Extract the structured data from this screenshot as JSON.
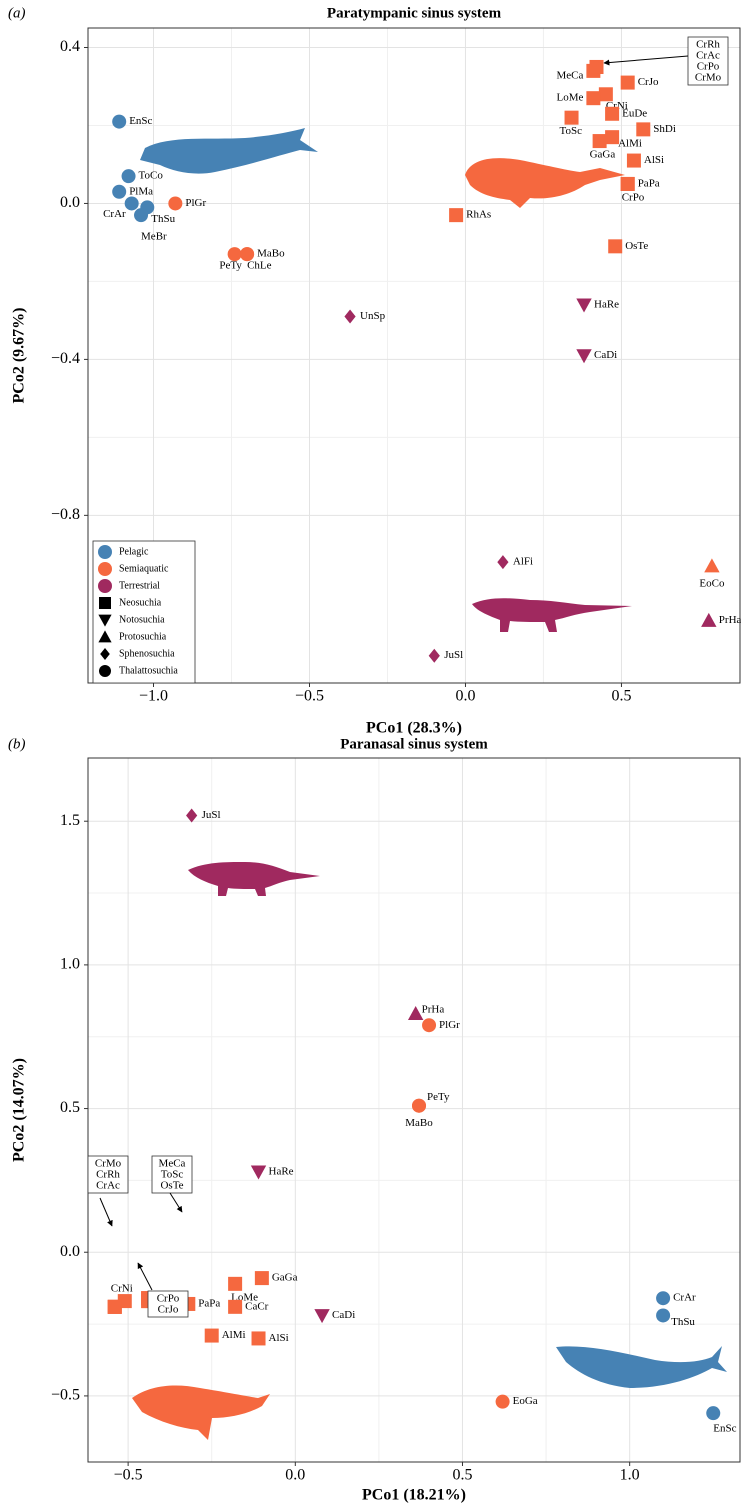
{
  "chart_data": [
    {
      "type": "scatter",
      "panel_label": "(a)",
      "title": "Paratympanic sinus system",
      "xlabel": "PCo1 (28.3%)",
      "ylabel": "PCo2 (9.67%)",
      "xlim": [
        -1.21,
        0.88
      ],
      "ylim": [
        -1.23,
        0.45
      ],
      "xticks": [
        {
          "value": -1,
          "label": "−1.0"
        },
        {
          "value": -0.5,
          "label": "−0.5"
        },
        {
          "value": 0,
          "label": "0.0"
        },
        0.5
      ],
      "yticks": [
        {
          "value": -0.8,
          "label": "−0.8"
        },
        {
          "value": -0.4,
          "label": "−0.4"
        },
        {
          "value": 0,
          "label": "0.0"
        },
        0.4
      ],
      "grid": true,
      "legend_position": "bottom left",
      "groups": [
        {
          "name": "Neosuchia",
          "marker": "square"
        },
        {
          "name": "Notosuchia",
          "marker": "triangle-down"
        },
        {
          "name": "Protosuchia",
          "marker": "triangle"
        },
        {
          "name": "Sphenosuchia",
          "marker": "diamond"
        },
        {
          "name": "Thalattosuchia",
          "marker": "circle"
        }
      ],
      "series": [
        {
          "name": "Pelagic",
          "color": "#4682b4",
          "labels": [
            "EnSc",
            "ToCo",
            "PlMa",
            "CrAr",
            "ThSu",
            "MeBr"
          ],
          "x": [
            -1.11,
            -1.08,
            -1.11,
            -1.07,
            -1.02,
            -1.04
          ],
          "values": [
            0.21,
            0.07,
            0.03,
            0.0,
            -0.01,
            -0.03
          ],
          "markers": [
            "circle",
            "circle",
            "circle",
            "circle",
            "circle",
            "circle"
          ]
        },
        {
          "name": "Semiaquatic",
          "color": "#f5683f",
          "labels": [
            "PlGr",
            "PeTy",
            "MaBo",
            "ChLe",
            "RhAs",
            "MeCa",
            null,
            null,
            null,
            null,
            "CrJo",
            "CrNi",
            "LoMe",
            "EuDe",
            "ToSc",
            "ShDi",
            "AlMi",
            "GaGa",
            "AlSi",
            "PaPa",
            "CrPo",
            "OsTe",
            "EoCo"
          ],
          "x": [
            -0.93,
            -0.74,
            -0.7,
            -0.7,
            -0.03,
            0.41,
            0.42,
            0.42,
            0.42,
            0.42,
            0.52,
            0.45,
            0.41,
            0.47,
            0.34,
            0.57,
            0.47,
            0.43,
            0.54,
            0.52,
            0.52,
            0.48,
            0.79
          ],
          "values": [
            0.0,
            -0.13,
            -0.13,
            -0.13,
            -0.03,
            0.34,
            0.35,
            0.35,
            0.35,
            0.35,
            0.31,
            0.28,
            0.27,
            0.23,
            0.22,
            0.19,
            0.17,
            0.16,
            0.11,
            0.05,
            0.05,
            -0.11,
            -0.93
          ],
          "markers": [
            "circle",
            "circle",
            "circle",
            "circle",
            "square",
            "square",
            "square",
            "square",
            "square",
            "square",
            "square",
            "square",
            "square",
            "square",
            "square",
            "square",
            "square",
            "square",
            "square",
            "square",
            "square",
            "square",
            "triangle"
          ]
        },
        {
          "name": "Terrestrial",
          "color": "#a0295f",
          "labels": [
            "UnSp",
            "HaRe",
            "CaDi",
            "AlFi",
            "JuSl",
            "PrHa"
          ],
          "x": [
            -0.37,
            0.38,
            0.38,
            0.12,
            -0.1,
            0.78
          ],
          "values": [
            -0.29,
            -0.26,
            -0.39,
            -0.92,
            -1.16,
            -1.07
          ],
          "markers": [
            "diamond",
            "triangle-down",
            "triangle-down",
            "diamond",
            "diamond",
            "triangle"
          ]
        }
      ],
      "callouts": [
        {
          "lines": [
            "CrRh",
            "CrAc",
            "CrPo",
            "CrMo"
          ]
        }
      ]
    },
    {
      "type": "scatter",
      "panel_label": "(b)",
      "title": "Paranasal sinus system",
      "xlabel": "PCo1 (18.21%)",
      "ylabel": "PCo2 (14.07%)",
      "xlim": [
        -0.62,
        1.33
      ],
      "ylim": [
        -0.73,
        1.72
      ],
      "xticks": [
        {
          "value": -0.5,
          "label": "−0.5"
        },
        {
          "value": 0,
          "label": "0.0"
        },
        0.5,
        {
          "value": 1,
          "label": "1.0"
        }
      ],
      "yticks": [
        {
          "value": -0.5,
          "label": "−0.5"
        },
        {
          "value": 0,
          "label": "0.0"
        },
        0.5,
        {
          "value": 1,
          "label": "1.0"
        },
        1.5
      ],
      "grid": true,
      "series": [
        {
          "name": "Pelagic",
          "color": "#4682b4",
          "labels": [
            "CrAr",
            "ThSu",
            "EnSc"
          ],
          "x": [
            1.1,
            1.1,
            1.25
          ],
          "values": [
            -0.16,
            -0.22,
            -0.56
          ],
          "markers": [
            "circle",
            "circle",
            "circle"
          ]
        },
        {
          "name": "Semiaquatic",
          "color": "#f5683f",
          "labels": [
            "PlGr",
            "PeTy",
            "MaBo",
            "EoGa",
            "GaGa",
            "LoMe",
            "CaCr",
            "PaPa",
            "AlMi",
            "AlSi",
            "CrNi",
            null,
            null,
            null,
            null,
            null,
            null,
            null,
            null
          ],
          "x": [
            0.4,
            0.37,
            0.37,
            0.62,
            -0.1,
            -0.18,
            -0.18,
            -0.32,
            -0.25,
            -0.11,
            -0.51,
            -0.54,
            -0.54,
            -0.54,
            -0.44,
            -0.44,
            -0.44,
            -0.44,
            -0.44
          ],
          "values": [
            0.79,
            0.51,
            0.51,
            -0.52,
            -0.09,
            -0.11,
            -0.19,
            -0.18,
            -0.29,
            -0.3,
            -0.17,
            -0.19,
            -0.19,
            -0.19,
            -0.16,
            -0.16,
            -0.16,
            -0.17,
            -0.17
          ],
          "markers": [
            "circle",
            "circle",
            "circle",
            "circle",
            "square",
            "square",
            "square",
            "square",
            "square",
            "square",
            "square",
            "square",
            "square",
            "square",
            "square",
            "square",
            "square",
            "square",
            "square"
          ]
        },
        {
          "name": "Terrestrial",
          "color": "#a0295f",
          "labels": [
            "JuSl",
            "PrHa",
            "HaRe",
            "CaDi"
          ],
          "x": [
            -0.31,
            0.36,
            -0.11,
            0.08
          ],
          "values": [
            1.52,
            0.83,
            0.28,
            -0.22
          ],
          "markers": [
            "diamond",
            "triangle",
            "triangle-down",
            "triangle-down"
          ]
        }
      ],
      "callouts": [
        {
          "lines": [
            "CrMo",
            "CrRh",
            "CrAc"
          ]
        },
        {
          "lines": [
            "MeCa",
            "ToSc",
            "OsTe"
          ]
        },
        {
          "lines": [
            "CrPo",
            "CrJo"
          ]
        }
      ]
    }
  ]
}
